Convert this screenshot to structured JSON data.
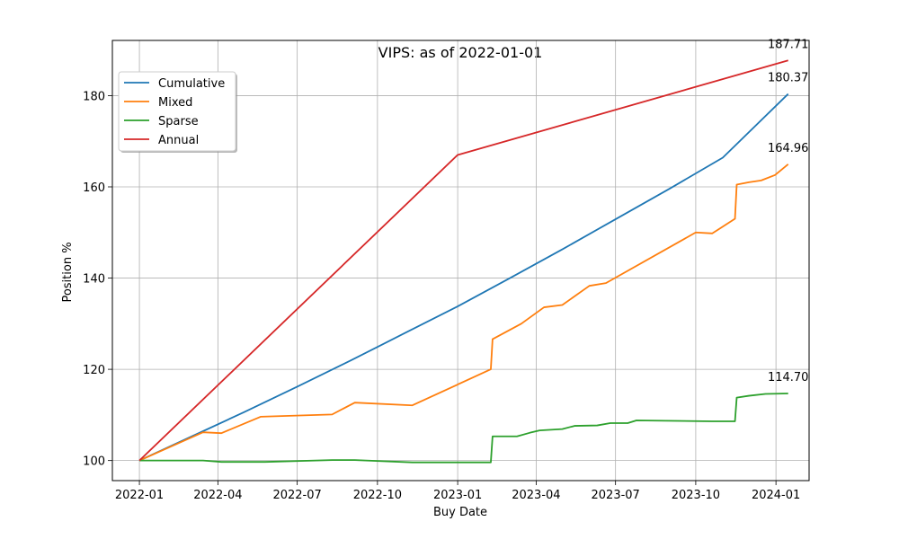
{
  "chart_data": {
    "type": "line",
    "title": "VIPS: as of 2022-01-01",
    "xlabel": "Buy Date",
    "ylabel": "Position %",
    "x_type": "date",
    "xlim": [
      "2021-12-01",
      "2024-02-08"
    ],
    "ylim": [
      95.6,
      192.1
    ],
    "x_ticks": [
      "2022-01-01",
      "2022-04-01",
      "2022-07-01",
      "2022-10-01",
      "2023-01-01",
      "2023-04-01",
      "2023-07-01",
      "2023-10-01",
      "2024-01-01"
    ],
    "x_tick_labels": [
      "2022-01",
      "2022-04",
      "2022-07",
      "2022-10",
      "2023-01",
      "2023-04",
      "2023-07",
      "2023-10",
      "2024-01"
    ],
    "y_ticks": [
      100,
      120,
      140,
      160,
      180
    ],
    "y_tick_labels": [
      "100",
      "120",
      "140",
      "160",
      "180"
    ],
    "grid": true,
    "legend_position": "top-left",
    "series": [
      {
        "name": "Cumulative",
        "color": "#1f77b4",
        "points": [
          [
            "2022-01-01",
            100.0
          ],
          [
            "2022-03-01",
            105.2
          ],
          [
            "2022-05-01",
            110.6
          ],
          [
            "2022-07-01",
            116.2
          ],
          [
            "2022-09-01",
            122.0
          ],
          [
            "2022-11-01",
            127.9
          ],
          [
            "2023-01-01",
            133.8
          ],
          [
            "2023-03-01",
            139.9
          ],
          [
            "2023-05-01",
            146.3
          ],
          [
            "2023-07-01",
            152.9
          ],
          [
            "2023-09-01",
            159.6
          ],
          [
            "2023-11-01",
            166.4
          ],
          [
            "2024-01-15",
            180.37
          ]
        ]
      },
      {
        "name": "Mixed",
        "color": "#ff7f0e",
        "points": [
          [
            "2022-01-01",
            100.0
          ],
          [
            "2022-03-15",
            106.2
          ],
          [
            "2022-04-05",
            106.0
          ],
          [
            "2022-05-20",
            109.6
          ],
          [
            "2022-08-10",
            110.1
          ],
          [
            "2022-09-05",
            112.7
          ],
          [
            "2022-11-10",
            112.1
          ],
          [
            "2023-02-08",
            120.0
          ],
          [
            "2023-02-10",
            126.6
          ],
          [
            "2023-03-15",
            130.0
          ],
          [
            "2023-04-10",
            133.6
          ],
          [
            "2023-05-01",
            134.1
          ],
          [
            "2023-06-01",
            138.3
          ],
          [
            "2023-06-20",
            138.9
          ],
          [
            "2023-10-01",
            150.0
          ],
          [
            "2023-10-20",
            149.8
          ],
          [
            "2023-11-15",
            153.0
          ],
          [
            "2023-11-17",
            160.5
          ],
          [
            "2023-12-01",
            161.0
          ],
          [
            "2023-12-15",
            161.4
          ],
          [
            "2023-12-31",
            162.6
          ],
          [
            "2024-01-15",
            164.96
          ]
        ]
      },
      {
        "name": "Sparse",
        "color": "#2ca02c",
        "points": [
          [
            "2022-01-01",
            100.0
          ],
          [
            "2022-03-15",
            100.0
          ],
          [
            "2022-04-05",
            99.7
          ],
          [
            "2022-05-25",
            99.7
          ],
          [
            "2022-08-10",
            100.1
          ],
          [
            "2022-09-05",
            100.1
          ],
          [
            "2022-11-10",
            99.6
          ],
          [
            "2023-02-08",
            99.6
          ],
          [
            "2023-02-10",
            105.3
          ],
          [
            "2023-03-10",
            105.3
          ],
          [
            "2023-03-25",
            106.1
          ],
          [
            "2023-04-05",
            106.6
          ],
          [
            "2023-05-01",
            106.9
          ],
          [
            "2023-05-15",
            107.6
          ],
          [
            "2023-06-10",
            107.7
          ],
          [
            "2023-06-25",
            108.2
          ],
          [
            "2023-07-15",
            108.2
          ],
          [
            "2023-07-25",
            108.8
          ],
          [
            "2023-10-20",
            108.6
          ],
          [
            "2023-11-15",
            108.6
          ],
          [
            "2023-11-17",
            113.8
          ],
          [
            "2023-12-01",
            114.2
          ],
          [
            "2023-12-20",
            114.6
          ],
          [
            "2024-01-15",
            114.7
          ]
        ]
      },
      {
        "name": "Annual",
        "color": "#d62728",
        "points": [
          [
            "2022-01-01",
            100.0
          ],
          [
            "2023-01-01",
            167.0
          ],
          [
            "2024-01-15",
            187.71
          ]
        ]
      }
    ],
    "annotations": [
      {
        "text": "187.71",
        "x": "2024-01-15",
        "y": 187.71,
        "series": "Annual"
      },
      {
        "text": "180.37",
        "x": "2024-01-15",
        "y": 180.37,
        "series": "Cumulative"
      },
      {
        "text": "164.96",
        "x": "2024-01-15",
        "y": 164.96,
        "series": "Mixed"
      },
      {
        "text": "114.70",
        "x": "2024-01-15",
        "y": 114.7,
        "series": "Sparse"
      }
    ]
  }
}
